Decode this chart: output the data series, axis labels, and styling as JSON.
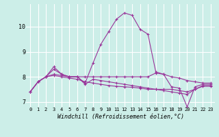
{
  "xlabel": "Windchill (Refroidissement éolien,°C)",
  "background_color": "#cceee8",
  "line_color": "#993399",
  "xlim": [
    -0.5,
    23.5
  ],
  "ylim": [
    6.8,
    10.9
  ],
  "yticks": [
    7,
    8,
    9,
    10
  ],
  "xticks": [
    0,
    1,
    2,
    3,
    4,
    5,
    6,
    7,
    8,
    9,
    10,
    11,
    12,
    13,
    14,
    15,
    16,
    17,
    18,
    19,
    20,
    21,
    22,
    23
  ],
  "series": [
    [
      7.4,
      7.8,
      8.0,
      8.4,
      8.1,
      8.0,
      8.0,
      7.75,
      8.55,
      9.3,
      9.8,
      10.3,
      10.55,
      10.45,
      9.9,
      9.7,
      8.2,
      8.1,
      7.6,
      7.55,
      6.8,
      7.6,
      7.7,
      7.7
    ],
    [
      7.4,
      7.8,
      8.0,
      8.3,
      8.1,
      8.0,
      8.0,
      8.0,
      8.0,
      8.0,
      8.0,
      8.0,
      8.0,
      8.0,
      8.0,
      8.0,
      8.15,
      8.1,
      8.0,
      7.95,
      7.85,
      7.8,
      7.75,
      7.75
    ],
    [
      7.4,
      7.8,
      8.0,
      8.1,
      8.05,
      8.0,
      8.0,
      7.7,
      7.9,
      7.85,
      7.8,
      7.75,
      7.7,
      7.65,
      7.6,
      7.55,
      7.5,
      7.45,
      7.4,
      7.35,
      7.3,
      7.5,
      7.65,
      7.65
    ],
    [
      7.4,
      7.8,
      8.0,
      8.05,
      8.0,
      7.95,
      7.9,
      7.8,
      7.75,
      7.7,
      7.65,
      7.62,
      7.6,
      7.58,
      7.55,
      7.5,
      7.5,
      7.5,
      7.5,
      7.45,
      7.4,
      7.5,
      7.62,
      7.62
    ]
  ]
}
